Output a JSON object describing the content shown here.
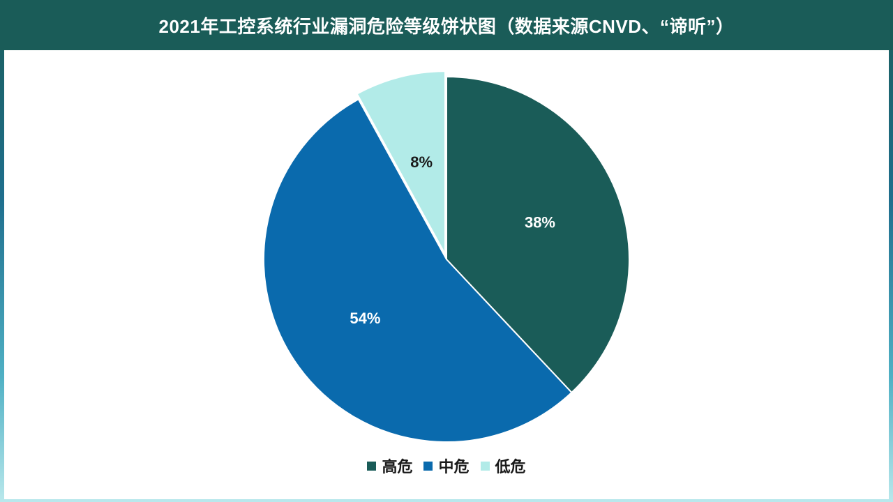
{
  "title": "2021年工控系统行业漏洞危险等级饼状图（数据来源CNVD、“谛听”）",
  "colors": {
    "high": "#1a5c58",
    "medium": "#0a6aad",
    "low": "#b2ebe8"
  },
  "chart_data": {
    "type": "pie",
    "title": "2021年工控系统行业漏洞危险等级饼状图（数据来源CNVD、“谛听”）",
    "slices": [
      {
        "name": "高危",
        "value": 38,
        "label": "38%",
        "color": "#1a5c58",
        "label_color": "#ffffff"
      },
      {
        "name": "中危",
        "value": 54,
        "label": "54%",
        "color": "#0a6aad",
        "label_color": "#ffffff"
      },
      {
        "name": "低危",
        "value": 8,
        "label": "8%",
        "color": "#b2ebe8",
        "label_color": "#1a1a1a",
        "exploded": true
      }
    ],
    "start_angle": "12 o'clock",
    "direction": "clockwise",
    "legend_position": "bottom"
  },
  "legend": [
    {
      "label": "高危",
      "color": "#1a5c58"
    },
    {
      "label": "中危",
      "color": "#0a6aad"
    },
    {
      "label": "低危",
      "color": "#b2ebe8"
    }
  ]
}
